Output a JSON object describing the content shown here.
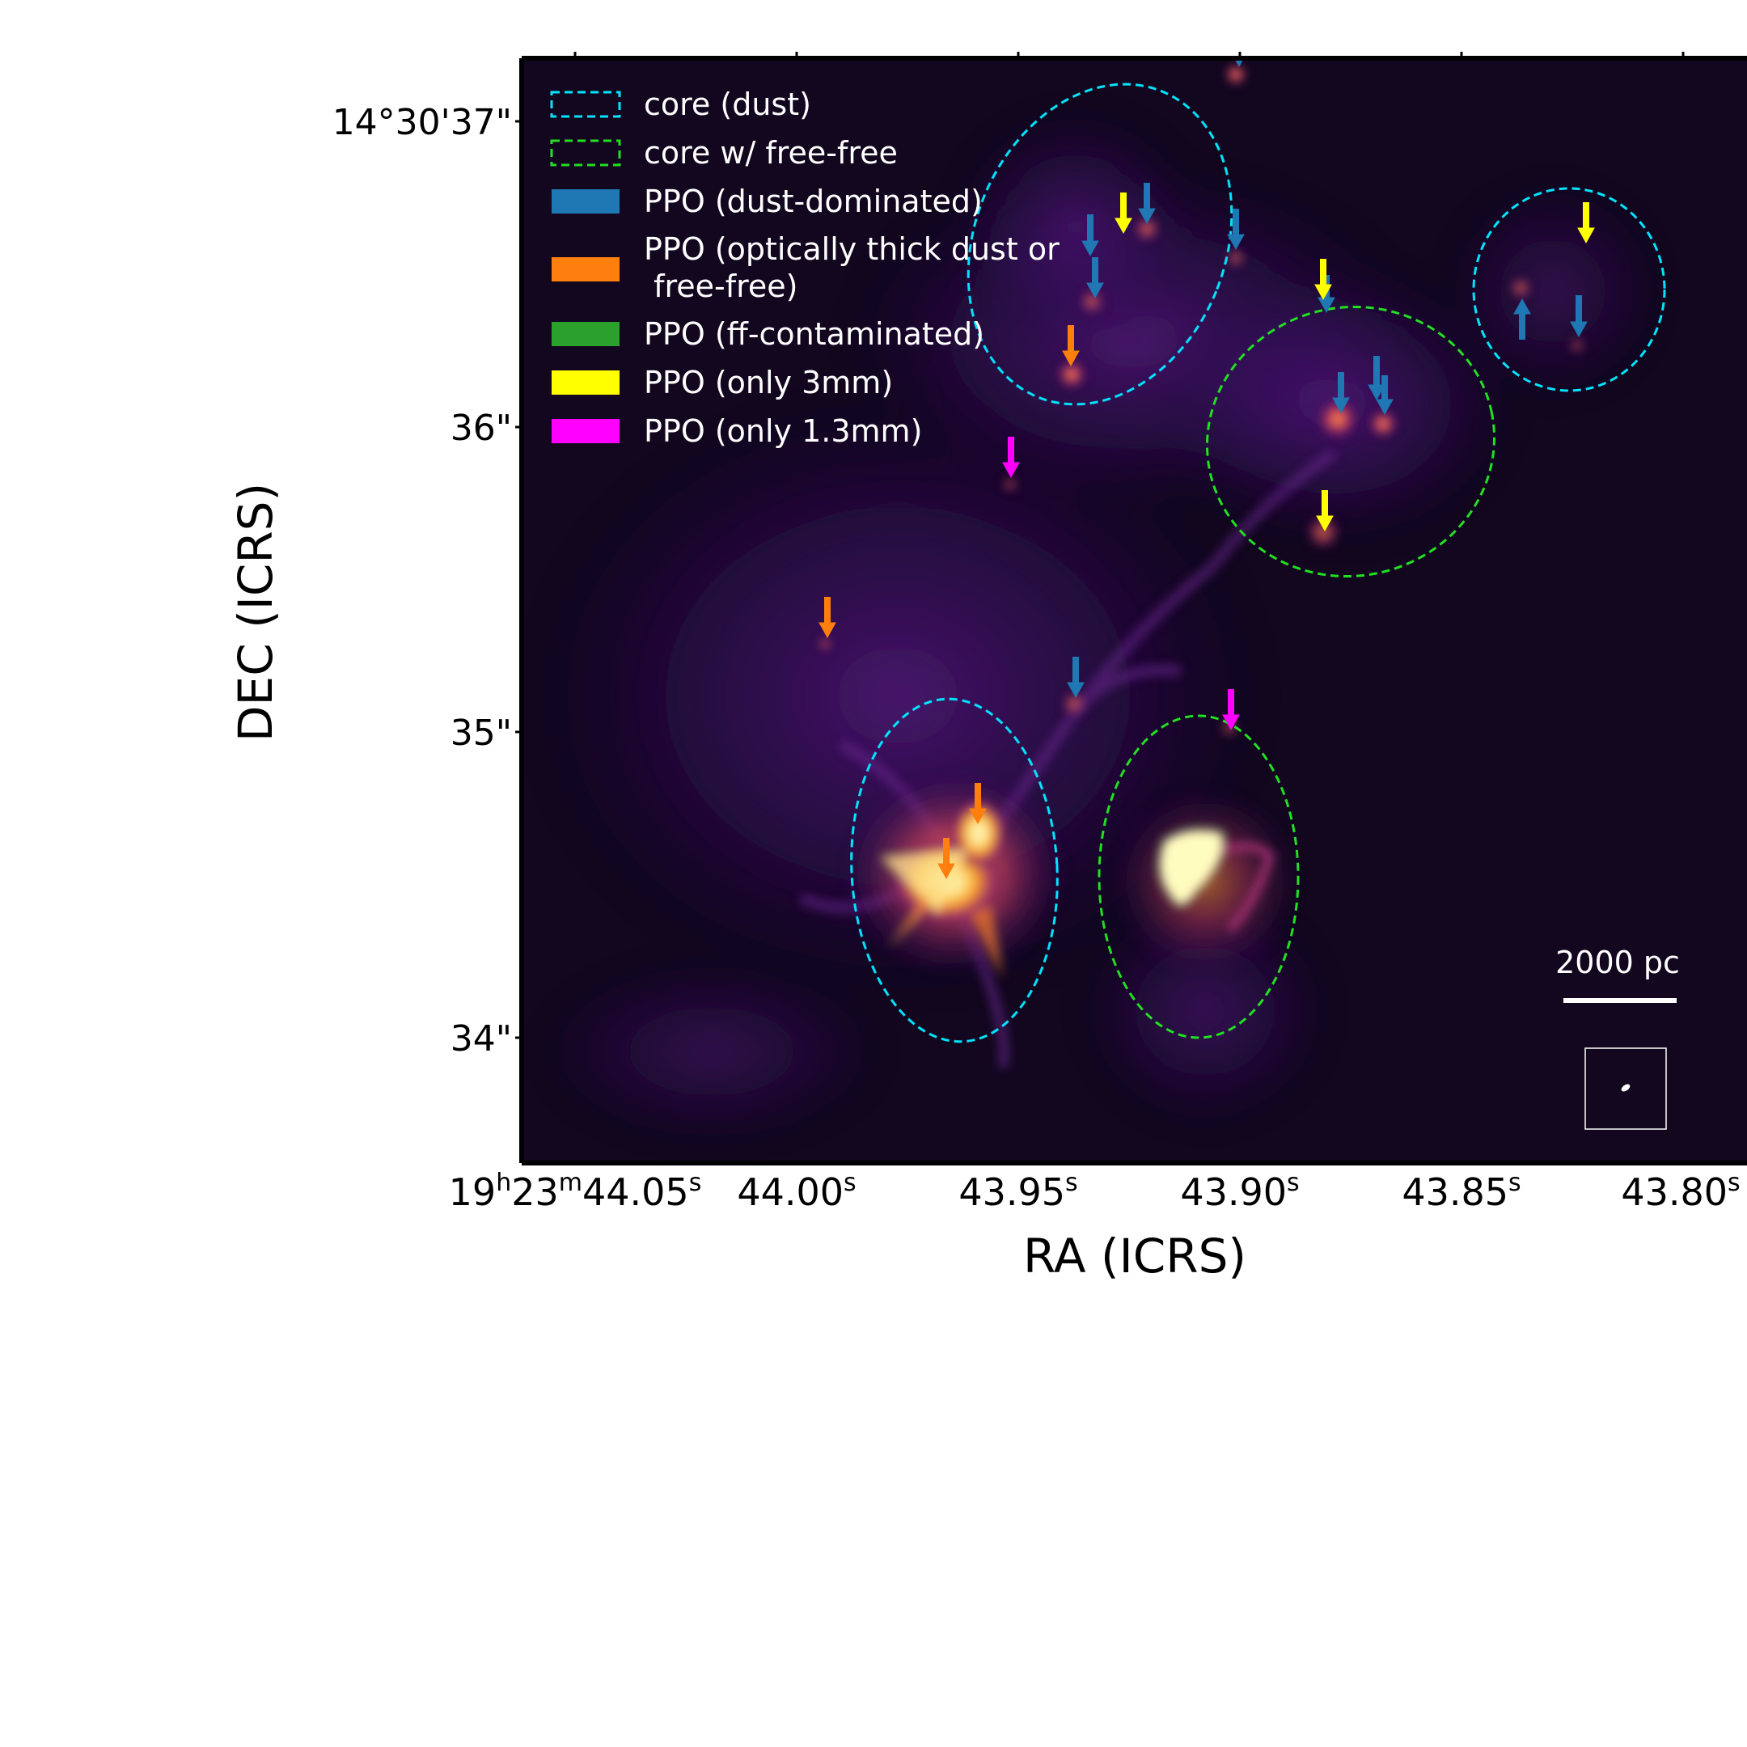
{
  "axes": {
    "xlabel": "RA (ICRS)",
    "ylabel": "DEC (ICRS)",
    "x_ticks": [
      {
        "h": "19",
        "m": "23",
        "s": "44.05"
      },
      {
        "s": "44.00"
      },
      {
        "s": "43.95"
      },
      {
        "s": "43.90"
      },
      {
        "s": "43.85"
      },
      {
        "s": "43.80"
      }
    ],
    "x_superscripts": {
      "h": "h",
      "m": "m",
      "s": "s"
    },
    "y_ticks": [
      "14°30'37\"",
      "36\"",
      "35\"",
      "34\""
    ]
  },
  "legend": [
    {
      "label": "core (dust)",
      "kind": "dashed-ellipse",
      "color": "#00e5ff"
    },
    {
      "label": "core w/ free-free",
      "kind": "dashed-ellipse",
      "color": "#22e022"
    },
    {
      "label": "PPO (dust-dominated)",
      "kind": "patch",
      "color": "#1f77b4"
    },
    {
      "label": "PPO (optically thick dust or",
      "label2": " free-free)",
      "kind": "patch",
      "color": "#ff7f0e"
    },
    {
      "label": "PPO (ff-contaminated)",
      "kind": "patch",
      "color": "#2ca02c"
    },
    {
      "label": "PPO (only 3mm)",
      "kind": "patch",
      "color": "#ffff00"
    },
    {
      "label": "PPO (only 1.3mm)",
      "kind": "patch",
      "color": "#ff00ff"
    }
  ],
  "scalebar": {
    "label": "2000 pc"
  },
  "colors": {
    "image_background": "#12071f",
    "colormap": "inferno"
  }
}
